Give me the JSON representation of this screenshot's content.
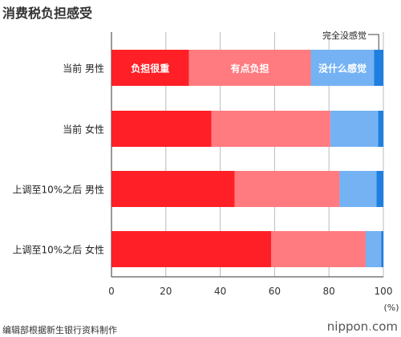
{
  "chart_data": {
    "type": "bar",
    "orientation": "horizontal",
    "stacked": true,
    "title": "消费税负担感受",
    "categories": [
      "当前 男性",
      "当前 女性",
      "上调至10%之后 男性",
      "上调至10%之后 女性"
    ],
    "series": [
      {
        "name": "负担很重",
        "color": "#ff1f26",
        "values": [
          28.5,
          36.8,
          45.3,
          58.7
        ]
      },
      {
        "name": "有点负担",
        "color": "#ff7b80",
        "values": [
          44.8,
          43.7,
          38.6,
          34.8
        ]
      },
      {
        "name": "没什么感觉",
        "color": "#74b2f4",
        "values": [
          23.3,
          17.6,
          13.6,
          5.7
        ]
      },
      {
        "name": "完全没感觉",
        "color": "#1f7fe0",
        "values": [
          3.4,
          1.9,
          2.5,
          0.8
        ]
      }
    ],
    "xlim": [
      0,
      100
    ],
    "xticks": [
      0,
      20,
      40,
      60,
      80,
      100
    ],
    "xunit": "(%)",
    "grid": true,
    "legend_placement": "inline-first-bar"
  },
  "footer": {
    "source": "编辑部根据新生银行资料制作",
    "brand_name": "nippon",
    "brand_dot": ".",
    "brand_tld": "com"
  }
}
